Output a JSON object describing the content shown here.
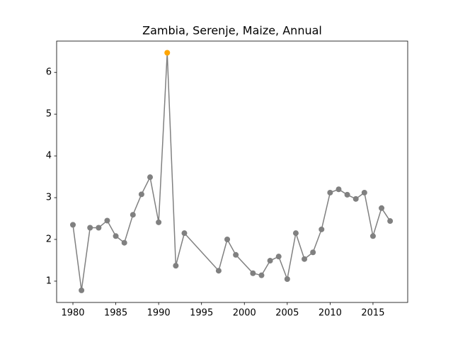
{
  "chart_data": {
    "type": "line",
    "title": "Zambia, Serenje, Maize, Annual",
    "x": [
      1980,
      1981,
      1982,
      1983,
      1984,
      1985,
      1986,
      1987,
      1988,
      1989,
      1990,
      1991,
      1992,
      1993,
      1997,
      1998,
      1999,
      2001,
      2002,
      2003,
      2004,
      2005,
      2006,
      2007,
      2008,
      2009,
      2010,
      2011,
      2012,
      2013,
      2014,
      2015,
      2016,
      2017
    ],
    "series": [
      {
        "color": "#808080",
        "values": [
          2.35,
          0.78,
          2.28,
          2.28,
          2.45,
          2.08,
          1.92,
          2.59,
          3.08,
          3.49,
          2.41,
          6.47,
          1.37,
          2.15,
          1.25,
          2.0,
          1.63,
          1.19,
          1.14,
          1.49,
          1.59,
          1.05,
          2.15,
          1.53,
          1.69,
          2.24,
          3.12,
          3.2,
          3.07,
          2.97,
          3.12,
          2.08,
          2.75,
          2.44
        ],
        "marker_colors": [
          "#808080",
          "#808080",
          "#808080",
          "#808080",
          "#808080",
          "#808080",
          "#808080",
          "#808080",
          "#808080",
          "#808080",
          "#808080",
          "#ffa500",
          "#808080",
          "#808080",
          "#808080",
          "#808080",
          "#808080",
          "#808080",
          "#808080",
          "#808080",
          "#808080",
          "#808080",
          "#808080",
          "#808080",
          "#808080",
          "#808080",
          "#808080",
          "#808080",
          "#808080",
          "#808080",
          "#808080",
          "#808080",
          "#808080",
          "#808080"
        ]
      }
    ],
    "xlim": [
      1978.1,
      2019.05
    ],
    "xticks": [
      1980,
      1985,
      1990,
      1995,
      2000,
      2005,
      2010,
      2015
    ],
    "ylim": [
      0.49,
      6.75
    ],
    "yticks": [
      1,
      2,
      3,
      4,
      5,
      6
    ],
    "grid": false
  }
}
